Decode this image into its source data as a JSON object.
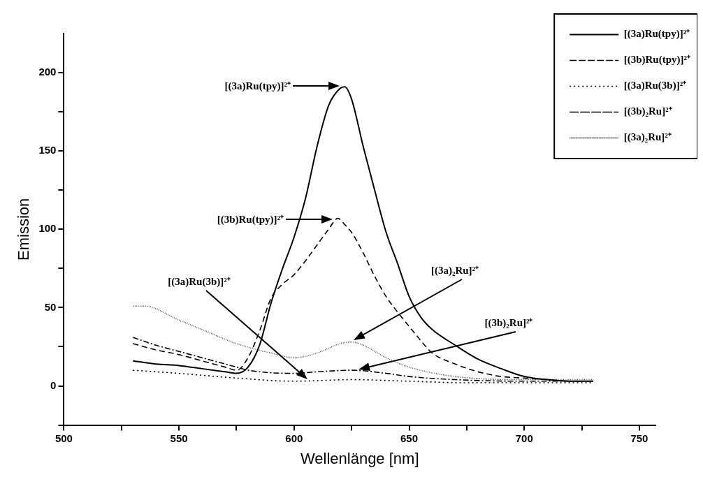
{
  "chart_data": {
    "type": "line",
    "xlabel": "Wellenlänge [nm]",
    "ylabel": "Emission",
    "xlim": [
      500,
      757
    ],
    "ylim": [
      -25,
      225
    ],
    "xticks": [
      500,
      {
        "value": 525,
        "label": null
      },
      550,
      {
        "value": 575,
        "label": null
      },
      600,
      {
        "value": 625,
        "label": null
      },
      650,
      {
        "value": 675,
        "label": null
      },
      700,
      {
        "value": 725,
        "label": null
      },
      750
    ],
    "yticks": [
      {
        "value": -25,
        "label": null
      },
      0,
      {
        "value": 25,
        "label": null
      },
      50,
      {
        "value": 75,
        "label": null
      },
      100,
      {
        "value": 125,
        "label": null
      },
      150,
      {
        "value": 175,
        "label": null
      },
      200
    ],
    "legend": "top right",
    "marker": "none",
    "series": [
      {
        "name": "[(3a)Ru(tpy)]²⁺",
        "color": "#000000",
        "line_style": "solid",
        "x": [
          530,
          540,
          550,
          560,
          570,
          575,
          580,
          585,
          590,
          595,
          600,
          605,
          610,
          615,
          620,
          622,
          625,
          630,
          635,
          640,
          645,
          650,
          655,
          660,
          670,
          680,
          690,
          700,
          710,
          720,
          730
        ],
        "values": [
          16,
          14,
          13,
          11,
          9,
          8,
          12,
          26,
          53,
          75,
          95,
          120,
          153,
          179,
          190,
          191,
          183,
          153,
          125,
          98,
          78,
          57,
          44,
          36,
          26,
          17,
          11,
          6,
          4,
          3,
          3
        ]
      },
      {
        "name": "[(3b)Ru(tpy)]²⁺",
        "color": "#000000",
        "line_style": "dashed",
        "x": [
          530,
          540,
          550,
          560,
          570,
          575,
          580,
          585,
          590,
          595,
          600,
          605,
          610,
          615,
          619,
          622,
          625,
          630,
          635,
          640,
          645,
          650,
          655,
          660,
          670,
          680,
          690,
          700,
          710,
          720,
          730
        ],
        "values": [
          27,
          23,
          20,
          16,
          12,
          10,
          18,
          35,
          56,
          65,
          71,
          80,
          90,
          100,
          107,
          103,
          98,
          85,
          70,
          57,
          47,
          38,
          29,
          21,
          14,
          9,
          6,
          5,
          4,
          3,
          3
        ]
      },
      {
        "name": "[(3a)Ru(3b)]²⁺",
        "color": "#000000",
        "line_style": "dotted",
        "x": [
          530,
          550,
          575,
          600,
          625,
          650,
          675,
          700,
          730
        ],
        "values": [
          10,
          8,
          5,
          3,
          4,
          3,
          2,
          2,
          2
        ]
      },
      {
        "name": "[(3b)₂Ru]²⁺",
        "color": "#000000",
        "line_style": "dashdot",
        "x": [
          530,
          540,
          550,
          560,
          575,
          580,
          600,
          610,
          625,
          640,
          650,
          670,
          700,
          730
        ],
        "values": [
          31,
          26,
          22,
          18,
          12,
          10,
          8,
          9,
          10,
          8,
          6,
          4,
          3,
          3
        ]
      },
      {
        "name": "[(3a)₂Ru]²⁺",
        "color": "#555555",
        "line_style": "finedotted",
        "x": [
          530,
          535,
          550,
          560,
          575,
          590,
          600,
          610,
          620,
          625,
          630,
          640,
          650,
          670,
          700,
          730
        ],
        "values": [
          51,
          51,
          42,
          36,
          27,
          21,
          18,
          21,
          27,
          28,
          26,
          18,
          12,
          6,
          4,
          4
        ]
      }
    ],
    "annotations": [
      "[(3a)Ru(tpy)]²⁺",
      "[(3b)Ru(tpy)]²⁺",
      "[(3a)Ru(3b)]²⁺",
      "[(3a)₂Ru]²⁺",
      "[(3b)₂Ru]²⁺"
    ]
  }
}
